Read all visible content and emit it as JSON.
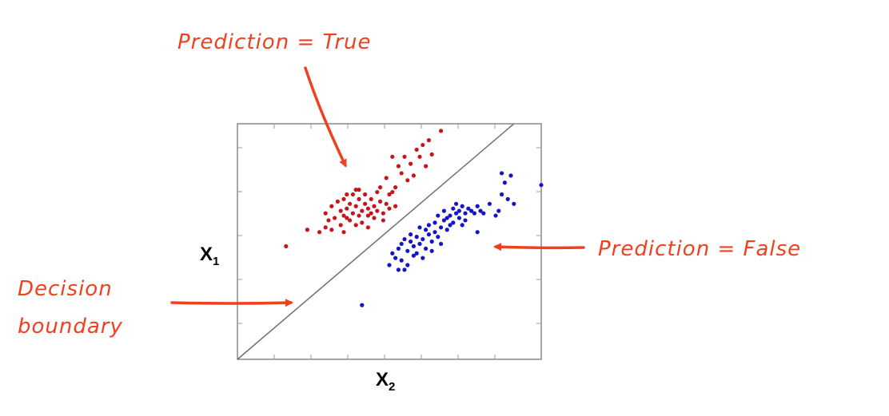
{
  "annotations": {
    "prediction_true": "Prediction = True",
    "prediction_false": "Prediction = False",
    "decision_line1": "Decision",
    "decision_line2": "boundary"
  },
  "axes": {
    "x_main": "X",
    "x_sub": "2",
    "y_main": "X",
    "y_sub": "1"
  },
  "colors": {
    "annotation": "#f0401f",
    "true_class": "#c8141a",
    "false_class": "#1414c8",
    "boundary": "#707070",
    "frame": "#888888"
  },
  "chart_data": {
    "type": "scatter",
    "xlim": [
      0,
      100
    ],
    "ylim": [
      0,
      100
    ],
    "grid": false,
    "boundary": {
      "from": [
        0,
        0
      ],
      "to": [
        91,
        100
      ]
    },
    "series": [
      {
        "name": "Prediction = True",
        "color": "#c8141a",
        "points": [
          [
            16,
            48
          ],
          [
            23,
            55
          ],
          [
            27,
            54
          ],
          [
            29,
            56
          ],
          [
            29,
            62
          ],
          [
            30,
            59
          ],
          [
            31,
            65
          ],
          [
            31,
            55
          ],
          [
            32,
            60
          ],
          [
            33,
            67
          ],
          [
            34,
            63
          ],
          [
            34,
            57
          ],
          [
            35,
            68
          ],
          [
            35,
            61
          ],
          [
            35,
            54
          ],
          [
            36,
            70
          ],
          [
            36,
            64
          ],
          [
            37,
            59
          ],
          [
            37,
            66
          ],
          [
            38,
            62
          ],
          [
            38,
            70
          ],
          [
            39,
            57
          ],
          [
            39,
            65
          ],
          [
            40,
            68
          ],
          [
            40,
            61
          ],
          [
            40,
            72
          ],
          [
            41,
            63
          ],
          [
            41,
            58
          ],
          [
            42,
            66
          ],
          [
            42,
            70
          ],
          [
            43,
            61
          ],
          [
            43,
            64
          ],
          [
            43,
            56
          ],
          [
            44,
            68
          ],
          [
            44,
            62
          ],
          [
            45,
            65
          ],
          [
            45,
            60
          ],
          [
            46,
            71
          ],
          [
            46,
            63
          ],
          [
            47,
            67
          ],
          [
            47,
            73
          ],
          [
            48,
            62
          ],
          [
            49,
            66
          ],
          [
            49,
            77
          ],
          [
            50,
            64
          ],
          [
            50,
            70
          ],
          [
            51,
            86
          ],
          [
            51,
            71
          ],
          [
            52,
            73
          ],
          [
            52,
            65
          ],
          [
            53,
            82
          ],
          [
            54,
            79
          ],
          [
            55,
            86
          ],
          [
            56,
            76
          ],
          [
            57,
            83
          ],
          [
            58,
            78
          ],
          [
            59,
            89
          ],
          [
            60,
            86
          ],
          [
            61,
            91
          ],
          [
            62,
            82
          ],
          [
            63,
            93
          ],
          [
            64,
            87
          ],
          [
            67,
            97
          ],
          [
            48,
            59
          ],
          [
            39,
            72
          ],
          [
            36,
            60
          ]
        ]
      },
      {
        "name": "Prediction = False",
        "color": "#1414c8",
        "points": [
          [
            41,
            23
          ],
          [
            50,
            40
          ],
          [
            51,
            45
          ],
          [
            52,
            43
          ],
          [
            53,
            47
          ],
          [
            54,
            42
          ],
          [
            54,
            49
          ],
          [
            55,
            51
          ],
          [
            55,
            38
          ],
          [
            56,
            46
          ],
          [
            57,
            50
          ],
          [
            57,
            53
          ],
          [
            58,
            44
          ],
          [
            58,
            48
          ],
          [
            59,
            52
          ],
          [
            59,
            45
          ],
          [
            60,
            56
          ],
          [
            60,
            49
          ],
          [
            61,
            51
          ],
          [
            61,
            43
          ],
          [
            62,
            55
          ],
          [
            62,
            47
          ],
          [
            63,
            53
          ],
          [
            63,
            57
          ],
          [
            64,
            50
          ],
          [
            64,
            46
          ],
          [
            65,
            58
          ],
          [
            65,
            54
          ],
          [
            66,
            52
          ],
          [
            66,
            61
          ],
          [
            67,
            56
          ],
          [
            67,
            49
          ],
          [
            68,
            59
          ],
          [
            68,
            63
          ],
          [
            69,
            55
          ],
          [
            69,
            60
          ],
          [
            70,
            61
          ],
          [
            70,
            57
          ],
          [
            71,
            64
          ],
          [
            71,
            58
          ],
          [
            72,
            62
          ],
          [
            72,
            66
          ],
          [
            73,
            60
          ],
          [
            73,
            63
          ],
          [
            74,
            65
          ],
          [
            74,
            57
          ],
          [
            75,
            62
          ],
          [
            75,
            59
          ],
          [
            76,
            64
          ],
          [
            77,
            63
          ],
          [
            78,
            62
          ],
          [
            79,
            65
          ],
          [
            80,
            63
          ],
          [
            81,
            62
          ],
          [
            83,
            66
          ],
          [
            85,
            61
          ],
          [
            86,
            63
          ],
          [
            87,
            70
          ],
          [
            89,
            68
          ],
          [
            91,
            66
          ],
          [
            88,
            75
          ],
          [
            87,
            79
          ],
          [
            90,
            78
          ],
          [
            100,
            74
          ],
          [
            79,
            54
          ],
          [
            56,
            40
          ],
          [
            53,
            38
          ]
        ]
      }
    ]
  }
}
